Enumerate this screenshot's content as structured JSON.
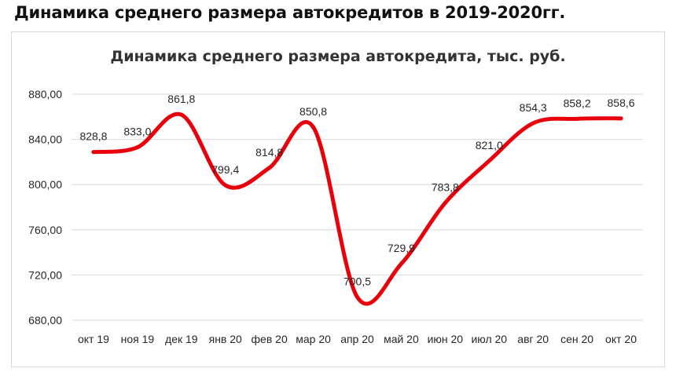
{
  "page": {
    "heading": "Динамика среднего размера автокредитов в 2019-2020гг."
  },
  "chart_data": {
    "type": "line",
    "title": "Динамика среднего размера автокредита,  тыс. руб.",
    "xlabel": "",
    "ylabel": "",
    "categories": [
      "окт 19",
      "ноя 19",
      "дек 19",
      "янв 20",
      "фев 20",
      "мар 20",
      "апр 20",
      "май 20",
      "июн 20",
      "июл 20",
      "авг 20",
      "сен 20",
      "окт 20"
    ],
    "series": [
      {
        "values": [
          828.8,
          833.0,
          861.8,
          799.4,
          814.8,
          850.8,
          700.5,
          729.9,
          783.8,
          821.0,
          854.3,
          858.2,
          858.6
        ],
        "labels": [
          "828,8",
          "833,0",
          "861,8",
          "799,4",
          "814,8",
          "850,8",
          "700,5",
          "729,9",
          "783,8",
          "821,0",
          "854,3",
          "858,2",
          "858,6"
        ],
        "color": "#e8000b"
      }
    ],
    "ylim": [
      680,
      880
    ],
    "yticks": [
      680,
      720,
      760,
      800,
      840,
      880
    ],
    "ytick_labels": [
      "680,00",
      "720,00",
      "760,00",
      "800,00",
      "840,00",
      "880,00"
    ],
    "grid": true,
    "smooth": true,
    "legend": "none"
  }
}
